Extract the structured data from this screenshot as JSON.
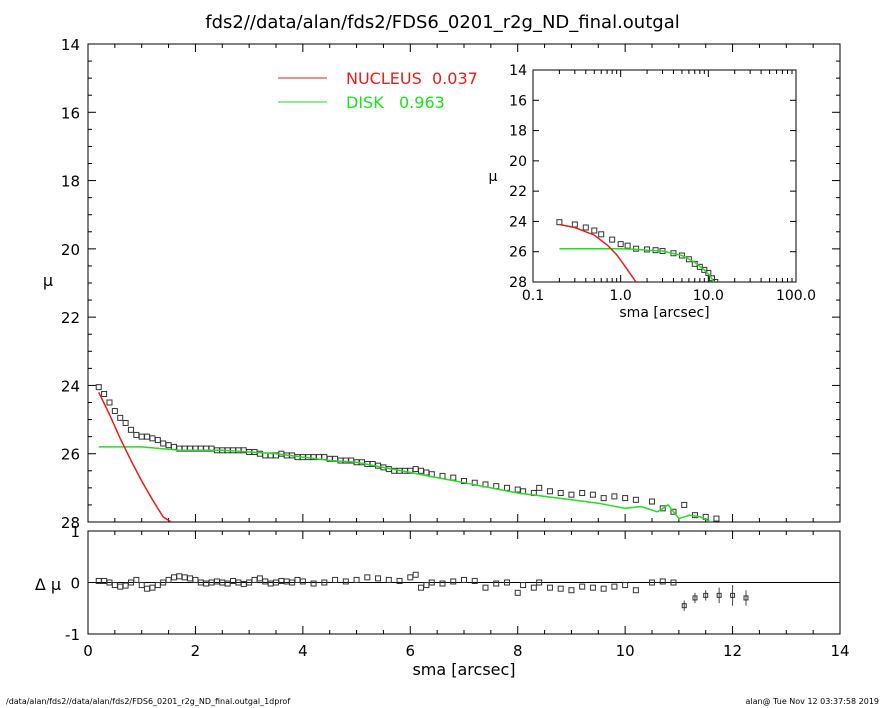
{
  "title": "fds2//data/alan/fds2/FDS6_0201_r2g_ND_final.outgal",
  "footer": {
    "left": "/data/alan/fds2//data/alan/fds2/FDS6_0201_r2g_ND_final.outgal_1dprof",
    "right": "alan@  Tue Nov 12 03:37:58 2019"
  },
  "colors": {
    "nucleus": "#e0201e",
    "disk": "#22dd22",
    "data": "#000000",
    "axis": "#000000"
  },
  "chart_data": [
    {
      "type": "line",
      "panel": "main",
      "xlabel": "",
      "ylabel": "μ",
      "xlim": [
        0,
        14
      ],
      "ylim": [
        28,
        14
      ],
      "y_inverted": true,
      "yticks": [
        "14",
        "16",
        "18",
        "20",
        "22",
        "24",
        "26",
        "28"
      ],
      "legend": [
        {
          "name": "NUCLEUS",
          "value": "0.037",
          "color": "#e0201e"
        },
        {
          "name": "DISK",
          "value": "0.963",
          "color": "#22dd22"
        }
      ],
      "legend_position": "top-center",
      "series": [
        {
          "name": "NUCLEUS",
          "x": [
            0.2,
            0.4,
            0.6,
            0.8,
            1.0,
            1.2,
            1.4,
            1.55
          ],
          "y": [
            24.2,
            24.85,
            25.55,
            26.2,
            26.8,
            27.35,
            27.85,
            28.0
          ]
        },
        {
          "name": "DISK",
          "x": [
            0.2,
            1.0,
            1.7,
            2.5,
            3.0,
            3.5,
            4.0,
            4.5,
            5.0,
            5.5,
            6.0,
            6.5,
            7.0,
            7.5,
            8.0,
            8.5,
            9.0,
            9.5,
            10.0,
            10.3,
            10.6,
            10.8,
            11.0,
            11.2,
            11.4,
            11.6
          ],
          "y": [
            25.8,
            25.8,
            25.9,
            25.9,
            25.95,
            26.0,
            26.1,
            26.2,
            26.25,
            26.4,
            26.55,
            26.7,
            26.85,
            27.0,
            27.15,
            27.25,
            27.35,
            27.45,
            27.6,
            27.55,
            27.7,
            27.5,
            27.9,
            27.8,
            27.85,
            28.0
          ]
        },
        {
          "name": "",
          "marker": "square",
          "x": [
            0.2,
            0.3,
            0.4,
            0.5,
            0.6,
            0.7,
            0.8,
            0.9,
            1.0,
            1.1,
            1.2,
            1.3,
            1.4,
            1.5,
            1.6,
            1.7,
            1.8,
            1.9,
            2.0,
            2.1,
            2.2,
            2.3,
            2.4,
            2.5,
            2.6,
            2.7,
            2.8,
            2.9,
            3.0,
            3.1,
            3.2,
            3.3,
            3.4,
            3.5,
            3.6,
            3.7,
            3.8,
            3.9,
            4.0,
            4.1,
            4.2,
            4.3,
            4.4,
            4.5,
            4.6,
            4.7,
            4.8,
            4.9,
            5.0,
            5.1,
            5.2,
            5.3,
            5.4,
            5.5,
            5.6,
            5.7,
            5.8,
            5.9,
            6.0,
            6.1,
            6.2,
            6.3,
            6.4,
            6.6,
            6.8,
            7.0,
            7.2,
            7.4,
            7.6,
            7.8,
            8.0,
            8.1,
            8.3,
            8.4,
            8.6,
            8.8,
            9.0,
            9.2,
            9.4,
            9.6,
            9.8,
            10.0,
            10.2,
            10.5,
            10.7,
            10.9,
            11.1,
            11.3,
            11.5,
            11.7
          ],
          "y": [
            24.05,
            24.25,
            24.5,
            24.75,
            24.95,
            25.1,
            25.3,
            25.45,
            25.5,
            25.5,
            25.55,
            25.6,
            25.7,
            25.75,
            25.8,
            25.85,
            25.85,
            25.85,
            25.85,
            25.85,
            25.85,
            25.85,
            25.9,
            25.9,
            25.9,
            25.9,
            25.9,
            25.9,
            25.95,
            25.95,
            26.0,
            26.05,
            26.05,
            26.05,
            26.0,
            26.05,
            26.05,
            26.1,
            26.1,
            26.1,
            26.1,
            26.1,
            26.1,
            26.15,
            26.15,
            26.2,
            26.2,
            26.2,
            26.25,
            26.25,
            26.3,
            26.3,
            26.35,
            26.4,
            26.45,
            26.5,
            26.5,
            26.5,
            26.5,
            26.45,
            26.5,
            26.55,
            26.6,
            26.65,
            26.7,
            26.8,
            26.85,
            26.9,
            26.95,
            27.0,
            27.05,
            27.1,
            27.15,
            27.0,
            27.1,
            27.15,
            27.2,
            27.15,
            27.2,
            27.3,
            27.25,
            27.3,
            27.35,
            27.4,
            27.6,
            27.7,
            27.5,
            27.8,
            27.85,
            27.9
          ]
        }
      ]
    },
    {
      "type": "line",
      "panel": "inset",
      "xlabel": "sma [arcsec]",
      "ylabel": "μ",
      "x_scale": "log",
      "xlim": [
        0.1,
        100.0
      ],
      "xticks": [
        "0.1",
        "1.0",
        "10.0",
        "100.0"
      ],
      "ylim": [
        28,
        14
      ],
      "y_inverted": true,
      "yticks": [
        "14",
        "16",
        "18",
        "20",
        "22",
        "24",
        "26",
        "28"
      ],
      "series": [
        {
          "name": "NUCLEUS",
          "x": [
            0.2,
            0.3,
            0.5,
            0.7,
            0.9,
            1.1,
            1.3,
            1.5
          ],
          "y": [
            24.2,
            24.4,
            24.9,
            25.55,
            26.2,
            26.9,
            27.5,
            28.0
          ]
        },
        {
          "name": "DISK",
          "x": [
            0.2,
            0.5,
            1.0,
            1.5,
            2.0,
            3.0,
            5.0,
            7.0,
            9.0,
            10.5,
            11.5
          ],
          "y": [
            25.8,
            25.8,
            25.8,
            25.85,
            25.9,
            25.95,
            26.25,
            26.7,
            27.2,
            27.6,
            28.0
          ]
        },
        {
          "name": "",
          "marker": "square",
          "x": [
            0.2,
            0.3,
            0.4,
            0.5,
            0.6,
            0.8,
            1.0,
            1.2,
            1.5,
            2.0,
            2.5,
            3.0,
            4.0,
            5.0,
            6.0,
            7.0,
            8.0,
            9.0,
            10.0,
            11.0,
            12.0
          ],
          "y": [
            24.05,
            24.2,
            24.4,
            24.6,
            24.85,
            25.2,
            25.5,
            25.6,
            25.8,
            25.85,
            25.9,
            25.95,
            26.1,
            26.25,
            26.5,
            26.8,
            27.0,
            27.2,
            27.4,
            27.75,
            28.0
          ]
        }
      ]
    },
    {
      "type": "scatter",
      "panel": "residual",
      "xlabel": "sma [arcsec]",
      "ylabel": "Δ μ",
      "xlim": [
        0,
        14
      ],
      "xticks": [
        "0",
        "2",
        "4",
        "6",
        "8",
        "10",
        "12",
        "14"
      ],
      "ylim": [
        -1,
        1
      ],
      "yticks": [
        "-1",
        "0",
        "1"
      ],
      "series": [
        {
          "name": "",
          "marker": "square",
          "x": [
            0.2,
            0.3,
            0.4,
            0.5,
            0.6,
            0.7,
            0.8,
            0.9,
            1.0,
            1.1,
            1.2,
            1.3,
            1.4,
            1.5,
            1.6,
            1.7,
            1.8,
            1.9,
            2.0,
            2.1,
            2.2,
            2.3,
            2.4,
            2.5,
            2.6,
            2.7,
            2.8,
            2.9,
            3.0,
            3.1,
            3.2,
            3.3,
            3.4,
            3.5,
            3.6,
            3.7,
            3.8,
            3.9,
            4.0,
            4.2,
            4.4,
            4.6,
            4.8,
            5.0,
            5.2,
            5.4,
            5.6,
            5.8,
            6.0,
            6.1,
            6.2,
            6.3,
            6.4,
            6.6,
            6.8,
            7.0,
            7.2,
            7.4,
            7.6,
            7.8,
            8.0,
            8.1,
            8.3,
            8.4,
            8.6,
            8.8,
            9.0,
            9.2,
            9.4,
            9.6,
            9.8,
            10.0,
            10.2,
            10.5,
            10.7,
            10.9
          ],
          "y": [
            0.03,
            0.03,
            0.0,
            -0.05,
            -0.08,
            -0.06,
            0.0,
            0.05,
            -0.05,
            -0.12,
            -0.1,
            -0.05,
            0.0,
            0.05,
            0.1,
            0.12,
            0.1,
            0.08,
            0.05,
            0.0,
            -0.02,
            0.0,
            0.02,
            0.0,
            -0.02,
            0.03,
            0.0,
            -0.03,
            0.0,
            0.05,
            0.08,
            0.02,
            -0.02,
            0.0,
            0.03,
            0.02,
            0.0,
            0.05,
            0.02,
            -0.02,
            0.0,
            0.05,
            0.02,
            0.05,
            0.1,
            0.08,
            0.05,
            0.03,
            0.1,
            0.15,
            -0.1,
            -0.05,
            0.0,
            -0.02,
            0.02,
            0.05,
            0.03,
            -0.1,
            -0.02,
            0.0,
            -0.2,
            -0.05,
            -0.1,
            0.0,
            -0.1,
            -0.12,
            -0.15,
            -0.08,
            -0.1,
            -0.12,
            -0.08,
            -0.05,
            -0.15,
            0.0,
            0.02,
            0.0
          ]
        },
        {
          "name": "",
          "marker": "errorbar",
          "x": [
            11.1,
            11.3,
            11.5,
            11.75,
            12.0,
            12.25
          ],
          "y": [
            -0.45,
            -0.3,
            -0.25,
            -0.25,
            -0.25,
            -0.3
          ],
          "err": [
            0.1,
            0.1,
            0.1,
            0.15,
            0.2,
            0.15
          ]
        }
      ]
    }
  ]
}
